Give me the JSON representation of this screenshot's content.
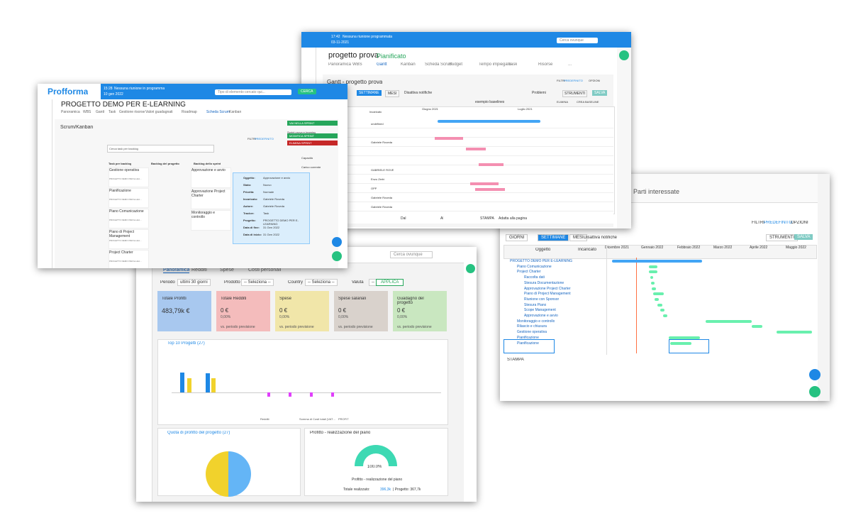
{
  "parti_window": {
    "title": "Parti interessate",
    "filters": "FILTRI",
    "filter_value": "PREDEFINITO",
    "options": "OPZIONI",
    "buttons": [
      "GIORNI",
      "SETTIMANE",
      "MESI"
    ],
    "toggle": "Disattiva notifiche",
    "tools": "STRUMENTI",
    "save": "SALVA",
    "col_object": "Oggetto",
    "col_assignee": "Incaricato",
    "months": [
      "Dicembre 2021",
      "Gennaio 2022",
      "Febbraio 2022",
      "Marzo 2022",
      "Aprile 2022",
      "Maggio 2022"
    ],
    "tasks": [
      "PROGETTO DEMO PER E-LEARNING",
      "Piano Comunicazione",
      "Project Charter",
      "Raccolta dati",
      "Stesura Documentazione",
      "Approvazione Project Charter",
      "Piano di Project Management",
      "Riunione con Sponsor",
      "Stesura Piano",
      "Scope Management",
      "Approvazione e avvio",
      "Monitoraggio e controllo",
      "Rilascio e chiusura",
      "Gestione operativa",
      "Pianificazione",
      "Pianificazione"
    ],
    "print": "STAMPA"
  },
  "dashboard_window": {
    "search": "Cerca ovunque",
    "tabs": [
      "Panoramica",
      "Redditi",
      "Spese",
      "Costi personali"
    ],
    "filters": [
      [
        "Periodo",
        "ultimi 30 giorni"
      ],
      [
        "Prodotto",
        "-- Seleziona --"
      ],
      [
        "Country",
        "-- Seleziona --"
      ],
      [
        "Valuta",
        "-- Seleziona --"
      ]
    ],
    "apply": "APPLICA",
    "kpis": [
      {
        "title": "Totale Profitti",
        "value": "483,79k €"
      },
      {
        "title": "Totale Redditi",
        "value": "0 €",
        "pct": "0,00%",
        "note": "vs. periodo previsione"
      },
      {
        "title": "Spese",
        "value": "0 €",
        "pct": "0,00%",
        "note": "vs. periodo previsione"
      },
      {
        "title": "Spese salariali",
        "value": "0 €",
        "pct": "0,00%",
        "note": "vs. periodo previsione"
      },
      {
        "title": "Guadagno del progetto",
        "value": "0 €",
        "pct": "0,00%",
        "note": "vs. periodo previsione"
      }
    ],
    "top10": "Top 10 Progetti (27)",
    "legend": [
      "Redditi",
      "Somma di Costi totali (VAT incl. - tariffa interna)",
      "PROFIT"
    ],
    "quota": "Quota di profitto del progetto (27)",
    "profit_title": "Profitto - realizzazione del piano",
    "gauge": "100.0%",
    "gauge_label": "Profitto - realizzazione del piano",
    "total_label": "Totale realizzato:",
    "total_value": "396,3k",
    "project_label": "| Progetto: 367,7k"
  },
  "gantt_window": {
    "time": "17:42",
    "notice": "Nessuna riunione programmata",
    "date": "03-11-2021",
    "search": "Cerca ovunque",
    "title": "progetto prova",
    "status": "Pianificato",
    "tabs": [
      "Panoramica",
      "WBS",
      "Gantt",
      "Kanban",
      "Scheda Scrum",
      "Budget",
      "Tempo impiegato",
      "Task",
      "Risorse",
      "..."
    ],
    "panel_title": "Gantt - progetto prova",
    "buttons": [
      "SETTIMANE",
      "MESI"
    ],
    "toggle": "Disattiva notifiche",
    "filters": "FILTRI",
    "filter_value": "PREDEFINITO",
    "options": "OPZIONI",
    "problems": "Problemi",
    "tools": "STRUMENTI",
    "save": "SALVA",
    "baseline": "esempio baselines",
    "delete": "ELIMINA",
    "create_baseline": "CREA BASELINE",
    "col_assignee": "Incaricato",
    "months": [
      "Giugno 2021",
      "Luglio 2021"
    ],
    "rows": [
      "undefined",
      "",
      "Gabriele Roveda",
      "",
      "",
      "GABRIELE ROVE",
      "Enzo Zerbi",
      "OPP",
      "Gabriele Roveda",
      "Gabriele Roveda"
    ],
    "from": "Dal",
    "to": "Al",
    "print": "STAMPA",
    "fit": "Adatta alla pagina"
  },
  "scrum_window": {
    "brand": "Profforma",
    "time": "15:28",
    "notice": "Nessuna riunione in programma",
    "date": "10 gen 2022",
    "search": "Tipo di elemento cercato qui...",
    "search_btn": "CERCA",
    "title": "PROGETTO DEMO PER E-LEARNING",
    "tabs": [
      "Panoramica",
      "WBS",
      "Gantt",
      "Task",
      "Gestione risorse",
      "Valori guadagnati",
      "Roadmap",
      "Scheda Scrum",
      "Kanban"
    ],
    "section": "Scrum/Kanban",
    "filters": "FILTRI",
    "filter_value": "PREDEFINITO",
    "backlog_search": "Cerca task per backlog",
    "columns": [
      "Task per backlog",
      "Backlog del progetto",
      "Backlog dello sprint"
    ],
    "backlog_cards": [
      "Gestione operativa",
      "Pianificazione",
      "Piano Comunicazione",
      "Piano di Project Management",
      "Project Charter"
    ],
    "sprint_cards": [
      "Approvazione e avvio",
      "Approvazione Project Charter",
      "Monitoraggio e controllo"
    ],
    "card_project": "PROGETTO DEMO PER E-LEA...",
    "sprint_buttons": [
      "VAI NELLA SPRINT",
      "MODIFICA SPRINT",
      "ELIMINA SPRINT"
    ],
    "sprint_select": "Sprint prova e-learning",
    "capacity": "Capacità",
    "load": "Carico corrente",
    "tooltip": [
      [
        "Oggetto:",
        "Approvazione e avvio"
      ],
      [
        "Stato:",
        "Nuovo"
      ],
      [
        "Priorità:",
        "Normale"
      ],
      [
        "Incaricato:",
        "Gabriele Roveda"
      ],
      [
        "Autore:",
        "Gabriele Roveda"
      ],
      [
        "Tracker:",
        "Task"
      ],
      [
        "Progetto:",
        "PROGETTO DEMO PER E-LEARNING"
      ],
      [
        "Data di fine:",
        "31 Gen 2022"
      ],
      [
        "Data di inizio:",
        "31 Gen 2022"
      ]
    ]
  }
}
